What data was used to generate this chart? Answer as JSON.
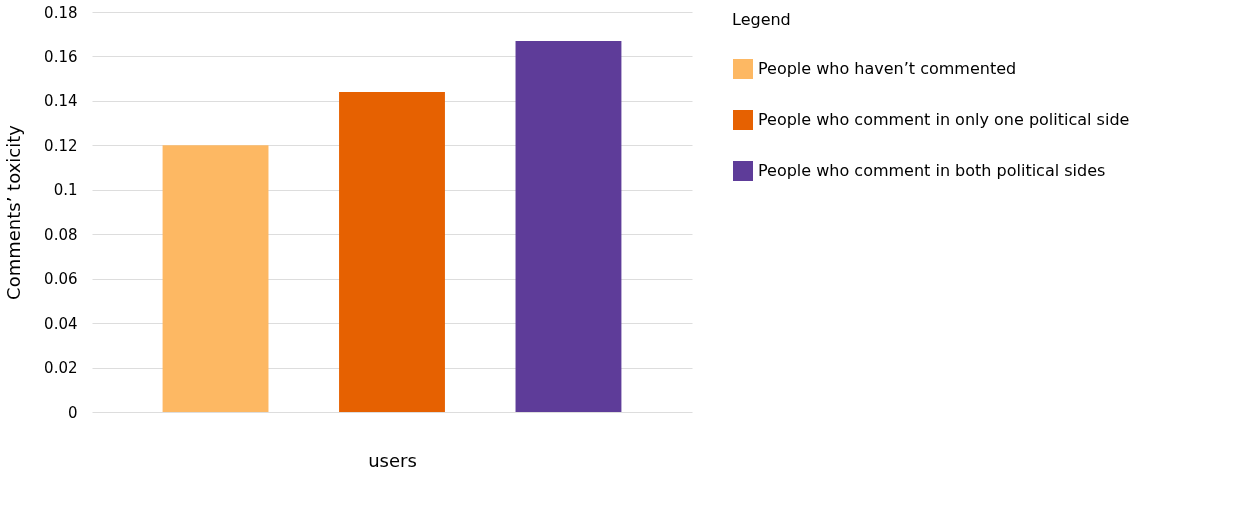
{
  "chart_data": {
    "type": "bar",
    "xlabel": "users",
    "ylabel": "Comments’ toxicity",
    "legend_title": "Legend",
    "categories": [
      null,
      null,
      null
    ],
    "series": [
      {
        "name": "People who haven’t commented",
        "color": "#fdb863",
        "values": [
          0.12,
          null,
          null
        ]
      },
      {
        "name": "People who comment in only one political side",
        "color": "#e66101",
        "values": [
          null,
          0.144,
          null
        ]
      },
      {
        "name": "People who comment in both political sides",
        "color": "#5e3c99",
        "values": [
          null,
          null,
          0.167
        ]
      }
    ],
    "ylim": [
      0,
      0.18
    ],
    "yticks": [
      0,
      0.02,
      0.04,
      0.06,
      0.08,
      0.1,
      0.12,
      0.14,
      0.16,
      0.18
    ],
    "grid": "y",
    "legend": "right",
    "tick_labels": "y"
  }
}
